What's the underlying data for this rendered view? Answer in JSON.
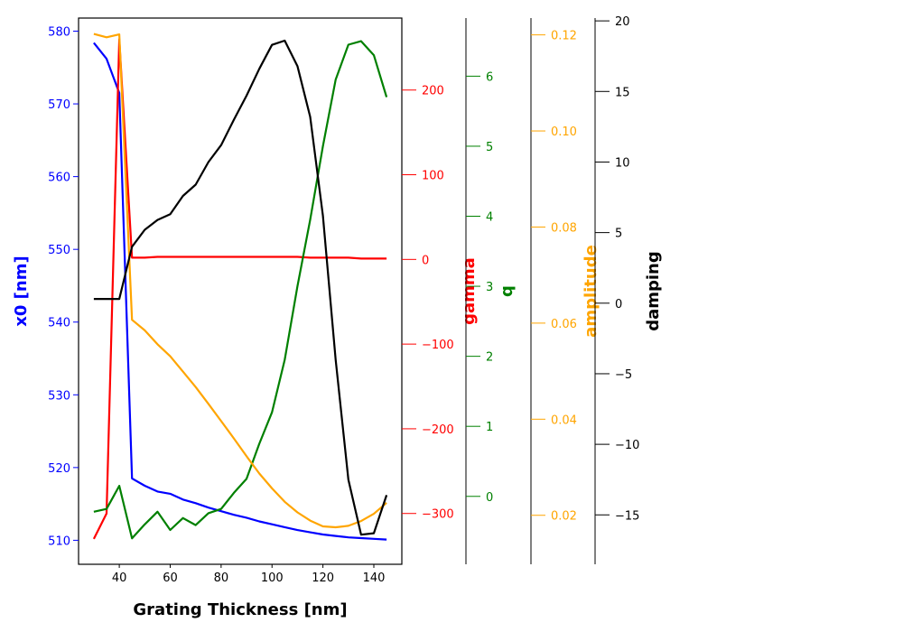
{
  "chart_data": {
    "type": "line",
    "xlabel": "Grating Thickness [nm]",
    "xlim": [
      24,
      151
    ],
    "xticks": [
      40,
      60,
      80,
      100,
      120,
      140
    ],
    "x": [
      30,
      35,
      40,
      45,
      50,
      55,
      60,
      65,
      70,
      75,
      80,
      85,
      90,
      95,
      100,
      105,
      110,
      115,
      120,
      125,
      130,
      135,
      140,
      145
    ],
    "axes": [
      {
        "key": "x0",
        "label": "x0 [nm]",
        "color": "#0000ff",
        "side": "left",
        "ylim": [
          506.7,
          581.8
        ],
        "ticks": [
          510,
          520,
          530,
          540,
          550,
          560,
          570,
          580
        ],
        "values": [
          578.4,
          576.2,
          571.5,
          518.5,
          517.5,
          516.7,
          516.4,
          515.6,
          515.1,
          514.5,
          514.0,
          513.5,
          513.1,
          512.6,
          512.2,
          511.8,
          511.4,
          511.1,
          510.8,
          510.6,
          510.4,
          510.3,
          510.2,
          510.1
        ]
      },
      {
        "key": "gamma",
        "label": "gamma",
        "color": "#ff0000",
        "side": "right",
        "ylim": [
          -360,
          285
        ],
        "ticks": [
          -300,
          -200,
          -100,
          0,
          100,
          200
        ],
        "values": [
          -330,
          -300,
          260,
          2,
          2,
          3,
          3,
          3,
          3,
          3,
          3,
          3,
          3,
          3,
          3,
          3,
          3,
          2,
          2,
          2,
          2,
          1,
          1,
          1
        ]
      },
      {
        "key": "q",
        "label": "q",
        "color": "#008000",
        "side": "right",
        "ylim": [
          -0.97,
          6.83
        ],
        "ticks": [
          0,
          1,
          2,
          3,
          4,
          5,
          6
        ],
        "values": [
          -0.22,
          -0.18,
          0.15,
          -0.6,
          -0.4,
          -0.22,
          -0.48,
          -0.31,
          -0.41,
          -0.24,
          -0.18,
          0.05,
          0.25,
          0.75,
          1.2,
          1.95,
          3.0,
          3.95,
          5.0,
          5.95,
          6.45,
          6.5,
          6.3,
          5.7
        ]
      },
      {
        "key": "amplitude",
        "label": "amplitude",
        "color": "#ffa500",
        "side": "right",
        "ylim": [
          0.0098,
          0.1235
        ],
        "ticks": [
          0.02,
          0.04,
          0.06,
          0.08,
          0.1,
          0.12
        ],
        "values": [
          0.1202,
          0.1195,
          0.1201,
          0.0607,
          0.0585,
          0.0556,
          0.0531,
          0.0499,
          0.0467,
          0.0432,
          0.0396,
          0.036,
          0.0323,
          0.0287,
          0.0256,
          0.0228,
          0.0206,
          0.0189,
          0.0177,
          0.0175,
          0.0178,
          0.0188,
          0.0203,
          0.0226
        ]
      },
      {
        "key": "damping",
        "label": "damping",
        "color": "#000000",
        "side": "right",
        "ylim": [
          -18.5,
          20.2
        ],
        "ticks": [
          -15,
          -10,
          -5,
          0,
          5,
          10,
          15,
          20
        ],
        "values": [
          0.3,
          0.3,
          0.3,
          4.0,
          5.2,
          5.9,
          6.3,
          7.6,
          8.4,
          10.0,
          11.2,
          13.0,
          14.7,
          16.6,
          18.3,
          18.6,
          16.8,
          13.2,
          6.2,
          -4.0,
          -12.5,
          -16.4,
          -16.3,
          -13.6
        ]
      }
    ]
  }
}
